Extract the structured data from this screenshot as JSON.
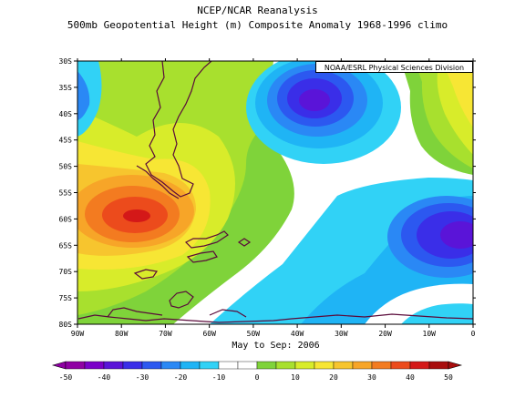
{
  "title_line1": "NCEP/NCAR Reanalysis",
  "title_line2": "500mb Geopotential Height (m) Composite Anomaly 1968-1996 climo",
  "credit": "NOAA/ESRL Physical Sciences Division",
  "subtitle": "May to Sep: 2006",
  "lat_labels": [
    "30S",
    "35S",
    "40S",
    "45S",
    "50S",
    "55S",
    "60S",
    "65S",
    "70S",
    "75S",
    "80S"
  ],
  "lon_labels": [
    "90W",
    "80W",
    "70W",
    "60W",
    "50W",
    "40W",
    "30W",
    "20W",
    "10W",
    "0"
  ],
  "colorbar": {
    "labels": [
      "-50",
      "-40",
      "-30",
      "-20",
      "-10",
      "0",
      "10",
      "20",
      "30",
      "40",
      "50"
    ],
    "colors": [
      "#8f00a3",
      "#7a00c8",
      "#5a14d8",
      "#3a2ee8",
      "#2c58f0",
      "#2a88f5",
      "#1fb4f5",
      "#31d2f6",
      "#ffffff",
      "#ffffff",
      "#7fd33a",
      "#a8e02e",
      "#d8ec2a",
      "#f7e634",
      "#f7c52e",
      "#f7a528",
      "#f37b20",
      "#ec4b1c",
      "#d41818",
      "#a80d0d"
    ]
  }
}
